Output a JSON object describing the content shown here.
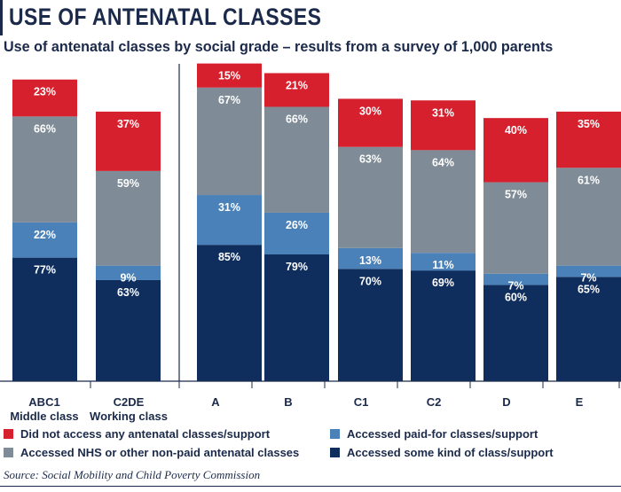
{
  "title": "USE OF ANTENATAL CLASSES",
  "subtitle": "Use of antenatal classes by social grade – results from a survey of 1,000 parents",
  "source": "Source: Social Mobility and Child Poverty Commission",
  "colors": {
    "red": "#d7202e",
    "grey": "#7f8c97",
    "blue": "#4a81b8",
    "navy": "#0f2e5e",
    "text": "#1b2a4a",
    "axis": "#1b2a4a"
  },
  "legend": [
    {
      "label": "Did not access any antenatal classes/support",
      "color": "#d7202e"
    },
    {
      "label": "Accessed paid-for classes/support",
      "color": "#4a81b8"
    },
    {
      "label": "Accessed NHS or other non-paid antenatal classes",
      "color": "#7f8c97"
    },
    {
      "label": "Accessed some kind of class/support",
      "color": "#0f2e5e"
    }
  ],
  "chart_data": {
    "type": "bar",
    "title": "USE OF ANTENATAL CLASSES",
    "subtitle": "Use of antenatal classes by social grade – results from a survey of 1,000 parents",
    "unit": "%",
    "categories": [
      {
        "line1": "ABC1",
        "line2": "Middle class"
      },
      {
        "line1": "C2DE",
        "line2": "Working class"
      },
      {
        "line1": "A",
        "line2": ""
      },
      {
        "line1": "B",
        "line2": ""
      },
      {
        "line1": "C1",
        "line2": ""
      },
      {
        "line1": "C2",
        "line2": ""
      },
      {
        "line1": "D",
        "line2": ""
      },
      {
        "line1": "E",
        "line2": ""
      }
    ],
    "series": [
      {
        "name": "Accessed some kind of class/support",
        "color": "#0f2e5e",
        "values": [
          77,
          63,
          85,
          79,
          70,
          69,
          60,
          65
        ]
      },
      {
        "name": "Accessed paid-for classes/support",
        "color": "#4a81b8",
        "values": [
          22,
          9,
          31,
          26,
          13,
          11,
          7,
          7
        ]
      },
      {
        "name": "Accessed NHS or other non-paid antenatal classes",
        "color": "#7f8c97",
        "values": [
          66,
          59,
          67,
          66,
          63,
          64,
          57,
          61
        ]
      },
      {
        "name": "Did not access any antenatal classes/support",
        "color": "#d7202e",
        "values": [
          23,
          37,
          15,
          21,
          30,
          31,
          40,
          35
        ]
      }
    ],
    "ylim": [
      0,
      188
    ],
    "grid": false,
    "legend_position": "bottom"
  }
}
